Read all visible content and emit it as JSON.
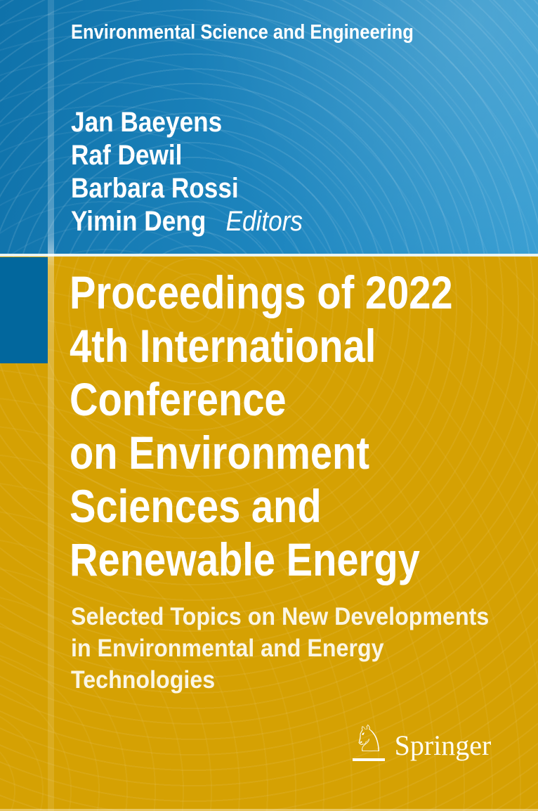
{
  "cover": {
    "series_title": "Environmental Science and Engineering",
    "authors": [
      "Jan Baeyens",
      "Raf Dewil",
      "Barbara Rossi",
      "Yimin Deng"
    ],
    "editors_label": "Editors",
    "title_lines": [
      "Proceedings of 2022",
      "4th International",
      "Conference",
      "on Environment",
      "Sciences and",
      "Renewable Energy"
    ],
    "subtitle_lines": [
      "Selected Topics on New Developments",
      "in Environmental and Energy",
      "Technologies"
    ],
    "publisher": "Springer",
    "icons": {
      "publisher_logo": "springer-horse-icon",
      "publisher_logo_glyph": "♘"
    },
    "colors": {
      "header_blue_dark": "#0f72aa",
      "header_blue_light": "#349cd1",
      "panel_yellow": "#d5a103",
      "accent_square_blue": "#02679d",
      "divider_white": "#eaf4f1",
      "title_text": "#ffffff",
      "subtitle_text": "#fbf6e4"
    }
  }
}
